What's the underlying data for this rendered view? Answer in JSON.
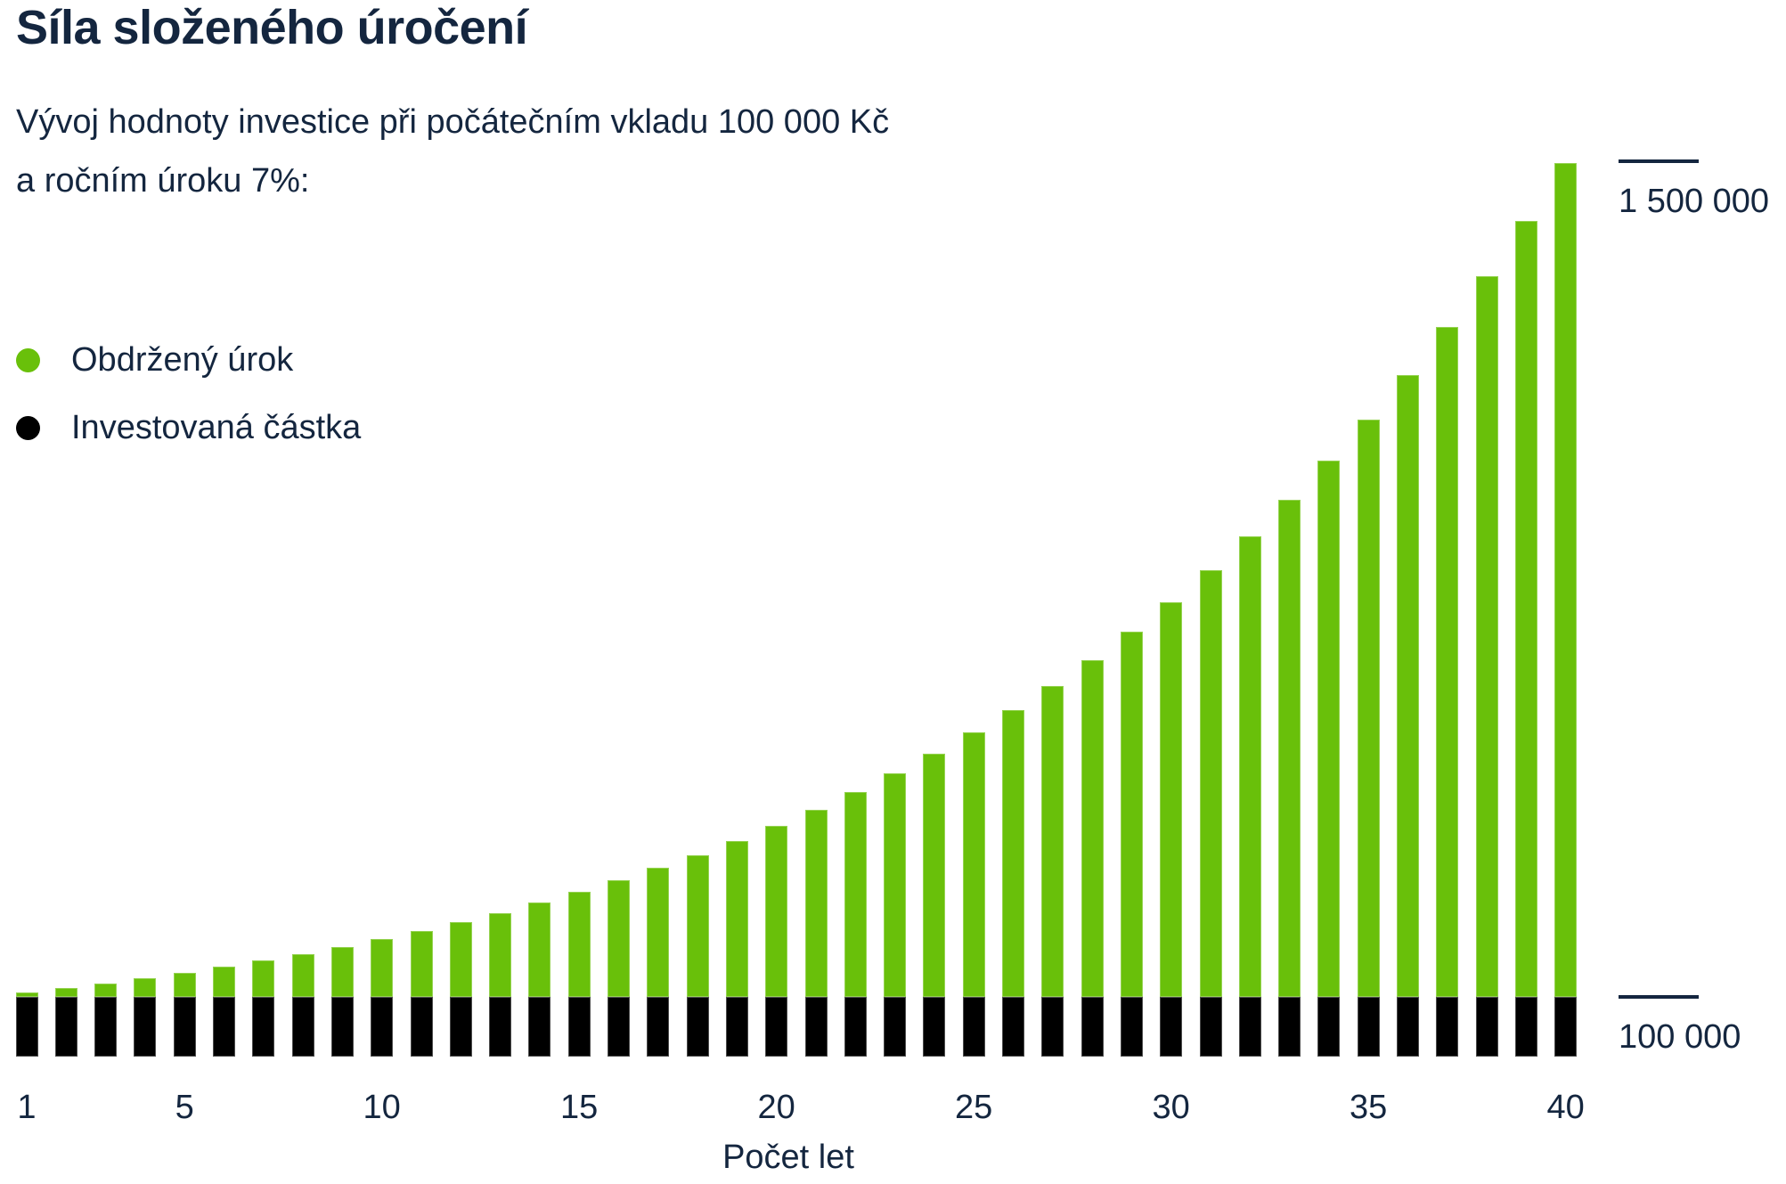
{
  "page": {
    "title": "Síla složeného úročení",
    "subtitle_line1": "Vývoj hodnoty investice při počátečním vkladu 100 000 Kč",
    "subtitle_line2": "a ročním úroku 7%:"
  },
  "legend": {
    "items": [
      {
        "label": "Obdržený úrok",
        "color": "#69C00A"
      },
      {
        "label": "Investovaná částka",
        "color": "#000000"
      }
    ]
  },
  "axes": {
    "x_label": "Počet let",
    "x_tick_labels": [
      "1",
      "5",
      "10",
      "15",
      "20",
      "25",
      "30",
      "35",
      "40"
    ],
    "y_ticks": [
      {
        "label": "1 500 000",
        "value": 1500000
      },
      {
        "label": "100 000",
        "value": 100000
      }
    ]
  },
  "colors": {
    "interest_green": "#69C00A",
    "invested_black": "#000000",
    "text_navy": "#14263F",
    "background": "#FFFFFF"
  },
  "chart_data": {
    "type": "bar",
    "stacked": true,
    "title": "Síla složeného úročení",
    "subtitle": "Vývoj hodnoty investice při počátečním vkladu 100 000 Kč a ročním úroku 7%:",
    "xlabel": "Počet let",
    "ylabel": "",
    "grid": false,
    "legend_position": "upper-left",
    "initial_deposit_kc": 100000,
    "annual_interest_rate_pct": 7,
    "x": [
      1,
      2,
      3,
      4,
      5,
      6,
      7,
      8,
      9,
      10,
      11,
      12,
      13,
      14,
      15,
      16,
      17,
      18,
      19,
      20,
      21,
      22,
      23,
      24,
      25,
      26,
      27,
      28,
      29,
      30,
      31,
      32,
      33,
      34,
      35,
      36,
      37,
      38,
      39,
      40
    ],
    "x_ticks_labeled": [
      1,
      5,
      10,
      15,
      20,
      25,
      30,
      35,
      40
    ],
    "y_ticks_labeled": [
      100000,
      1500000
    ],
    "ylim": [
      0,
      1550000
    ],
    "series": [
      {
        "name": "Investovaná částka",
        "color": "#000000",
        "values": [
          100000,
          100000,
          100000,
          100000,
          100000,
          100000,
          100000,
          100000,
          100000,
          100000,
          100000,
          100000,
          100000,
          100000,
          100000,
          100000,
          100000,
          100000,
          100000,
          100000,
          100000,
          100000,
          100000,
          100000,
          100000,
          100000,
          100000,
          100000,
          100000,
          100000,
          100000,
          100000,
          100000,
          100000,
          100000,
          100000,
          100000,
          100000,
          100000,
          100000
        ]
      },
      {
        "name": "Obdržený úrok",
        "color": "#69C00A",
        "values": [
          7000,
          14490,
          22504,
          31080,
          40255,
          50073,
          60578,
          71819,
          83846,
          96715,
          110485,
          125219,
          140985,
          157853,
          175903,
          195216,
          215882,
          237993,
          261653,
          286968,
          314056,
          343040,
          374053,
          407237,
          442743,
          480735,
          521387,
          564884,
          611426,
          661226,
          714511,
          771527,
          832534,
          897811,
          967658,
          1042394,
          1122362,
          1207927,
          1299482,
          1397446
        ]
      }
    ],
    "total_values": [
      107000,
      114490,
      122504,
      131080,
      140255,
      150073,
      160578,
      171819,
      183846,
      196715,
      210485,
      225219,
      240985,
      257853,
      275903,
      295216,
      315882,
      337993,
      361653,
      386968,
      414056,
      443040,
      474053,
      507237,
      542743,
      580735,
      621387,
      664884,
      711426,
      761226,
      814511,
      871527,
      932534,
      997811,
      1067658,
      1142394,
      1222362,
      1307927,
      1399482,
      1497446
    ]
  }
}
